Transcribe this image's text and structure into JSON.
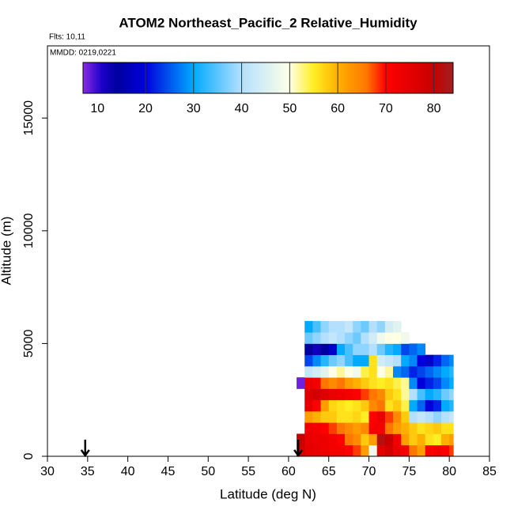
{
  "chart_data": {
    "type": "heatmap",
    "title": "ATOM2 Northeast_Pacific_2 Relative_Humidity",
    "flights": "Flts: 10,11",
    "dates": "MMDD: 0219,0221",
    "xlabel": "Latitude (deg N)",
    "ylabel": "Altitude (m)",
    "xlim": [
      30,
      85
    ],
    "xticks": [
      30,
      35,
      40,
      45,
      50,
      55,
      60,
      65,
      70,
      75,
      80,
      85
    ],
    "ylim": [
      0,
      18200
    ],
    "yticks": [
      0,
      5000,
      10000,
      15000
    ],
    "xbins": [
      61,
      62,
      63,
      64,
      65,
      66,
      67,
      68,
      69,
      70,
      71,
      72,
      73,
      74,
      75,
      76,
      77,
      78,
      79,
      80,
      80.5
    ],
    "ybins": [
      0,
      500,
      1000,
      1500,
      2000,
      2500,
      3000,
      3500,
      4000,
      4500,
      5000,
      5500,
      6000
    ],
    "z": [
      [
        78,
        75,
        74,
        73,
        72,
        72,
        70,
        68,
        62,
        48,
        75,
        78,
        74,
        72,
        66,
        62,
        70,
        72,
        70,
        68
      ],
      [
        80,
        74,
        73,
        73,
        72,
        70,
        66,
        64,
        58,
        62,
        82,
        80,
        72,
        62,
        58,
        60,
        56,
        55,
        60,
        62
      ],
      [
        null,
        73,
        72,
        70,
        68,
        66,
        64,
        62,
        64,
        72,
        72,
        66,
        62,
        60,
        58,
        56,
        57,
        58,
        56,
        56
      ],
      [
        null,
        62,
        60,
        58,
        58,
        56,
        56,
        57,
        55,
        70,
        74,
        68,
        64,
        58,
        40,
        42,
        40,
        38,
        40,
        42
      ],
      [
        null,
        75,
        70,
        62,
        57,
        56,
        55,
        56,
        58,
        64,
        66,
        56,
        58,
        54,
        30,
        26,
        20,
        22,
        30,
        32
      ],
      [
        null,
        76,
        78,
        76,
        74,
        73,
        72,
        70,
        68,
        66,
        64,
        58,
        56,
        52,
        40,
        34,
        30,
        32,
        36,
        38
      ],
      [
        8,
        74,
        72,
        66,
        64,
        66,
        62,
        60,
        58,
        56,
        55,
        56,
        54,
        52,
        28,
        20,
        22,
        24,
        28,
        30
      ],
      [
        null,
        42,
        44,
        46,
        50,
        52,
        50,
        48,
        54,
        56,
        50,
        52,
        28,
        26,
        22,
        24,
        26,
        28,
        30,
        32
      ],
      [
        null,
        24,
        28,
        32,
        36,
        38,
        34,
        30,
        30,
        56,
        44,
        42,
        40,
        30,
        28,
        20,
        18,
        22,
        26,
        28
      ],
      [
        null,
        14,
        12,
        14,
        18,
        30,
        34,
        38,
        38,
        40,
        36,
        32,
        30,
        24,
        26,
        28,
        null,
        null,
        null,
        null
      ],
      [
        null,
        36,
        38,
        40,
        42,
        40,
        38,
        36,
        40,
        44,
        48,
        50,
        50,
        48,
        null,
        null,
        null,
        null,
        null,
        null
      ],
      [
        null,
        30,
        34,
        38,
        40,
        40,
        42,
        38,
        36,
        40,
        38,
        44,
        46,
        null,
        null,
        null,
        null,
        null,
        null,
        null
      ]
    ],
    "markers": [
      34.7,
      61.2
    ],
    "colorlim": [
      7,
      84
    ],
    "cticks": [
      10,
      20,
      30,
      40,
      50,
      60,
      70,
      80
    ],
    "colorscale": [
      [
        7,
        "#8a2be2"
      ],
      [
        11,
        "#1a00c8"
      ],
      [
        14,
        "#0000a0"
      ],
      [
        20,
        "#0000dd"
      ],
      [
        30,
        "#00aaff"
      ],
      [
        40,
        "#b4e0ff"
      ],
      [
        50,
        "#ffffe6"
      ],
      [
        55,
        "#ffee22"
      ],
      [
        60,
        "#ffb000"
      ],
      [
        66,
        "#ff7700"
      ],
      [
        70,
        "#ff0000"
      ],
      [
        80,
        "#c80000"
      ],
      [
        84,
        "#a02020"
      ]
    ]
  }
}
